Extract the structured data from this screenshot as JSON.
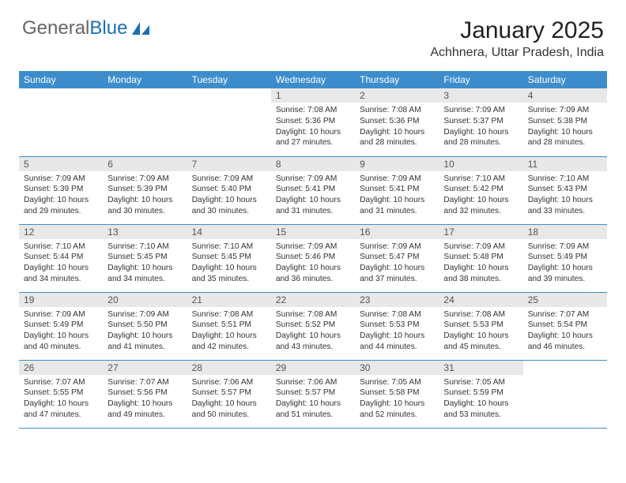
{
  "logo": {
    "part1": "General",
    "part2": "Blue"
  },
  "title": "January 2025",
  "location": "Achhnera, Uttar Pradesh, India",
  "colors": {
    "header_bg": "#3d8dcc",
    "daynum_bg": "#e8e8e8",
    "row_border": "#3d8dcc",
    "logo_gray": "#666666",
    "logo_blue": "#1a6fb3"
  },
  "weekdays": [
    "Sunday",
    "Monday",
    "Tuesday",
    "Wednesday",
    "Thursday",
    "Friday",
    "Saturday"
  ],
  "weeks": [
    [
      null,
      null,
      null,
      {
        "n": "1",
        "sr": "7:08 AM",
        "ss": "5:36 PM",
        "dl": "10 hours and 27 minutes."
      },
      {
        "n": "2",
        "sr": "7:08 AM",
        "ss": "5:36 PM",
        "dl": "10 hours and 28 minutes."
      },
      {
        "n": "3",
        "sr": "7:09 AM",
        "ss": "5:37 PM",
        "dl": "10 hours and 28 minutes."
      },
      {
        "n": "4",
        "sr": "7:09 AM",
        "ss": "5:38 PM",
        "dl": "10 hours and 28 minutes."
      }
    ],
    [
      {
        "n": "5",
        "sr": "7:09 AM",
        "ss": "5:39 PM",
        "dl": "10 hours and 29 minutes."
      },
      {
        "n": "6",
        "sr": "7:09 AM",
        "ss": "5:39 PM",
        "dl": "10 hours and 30 minutes."
      },
      {
        "n": "7",
        "sr": "7:09 AM",
        "ss": "5:40 PM",
        "dl": "10 hours and 30 minutes."
      },
      {
        "n": "8",
        "sr": "7:09 AM",
        "ss": "5:41 PM",
        "dl": "10 hours and 31 minutes."
      },
      {
        "n": "9",
        "sr": "7:09 AM",
        "ss": "5:41 PM",
        "dl": "10 hours and 31 minutes."
      },
      {
        "n": "10",
        "sr": "7:10 AM",
        "ss": "5:42 PM",
        "dl": "10 hours and 32 minutes."
      },
      {
        "n": "11",
        "sr": "7:10 AM",
        "ss": "5:43 PM",
        "dl": "10 hours and 33 minutes."
      }
    ],
    [
      {
        "n": "12",
        "sr": "7:10 AM",
        "ss": "5:44 PM",
        "dl": "10 hours and 34 minutes."
      },
      {
        "n": "13",
        "sr": "7:10 AM",
        "ss": "5:45 PM",
        "dl": "10 hours and 34 minutes."
      },
      {
        "n": "14",
        "sr": "7:10 AM",
        "ss": "5:45 PM",
        "dl": "10 hours and 35 minutes."
      },
      {
        "n": "15",
        "sr": "7:09 AM",
        "ss": "5:46 PM",
        "dl": "10 hours and 36 minutes."
      },
      {
        "n": "16",
        "sr": "7:09 AM",
        "ss": "5:47 PM",
        "dl": "10 hours and 37 minutes."
      },
      {
        "n": "17",
        "sr": "7:09 AM",
        "ss": "5:48 PM",
        "dl": "10 hours and 38 minutes."
      },
      {
        "n": "18",
        "sr": "7:09 AM",
        "ss": "5:49 PM",
        "dl": "10 hours and 39 minutes."
      }
    ],
    [
      {
        "n": "19",
        "sr": "7:09 AM",
        "ss": "5:49 PM",
        "dl": "10 hours and 40 minutes."
      },
      {
        "n": "20",
        "sr": "7:09 AM",
        "ss": "5:50 PM",
        "dl": "10 hours and 41 minutes."
      },
      {
        "n": "21",
        "sr": "7:08 AM",
        "ss": "5:51 PM",
        "dl": "10 hours and 42 minutes."
      },
      {
        "n": "22",
        "sr": "7:08 AM",
        "ss": "5:52 PM",
        "dl": "10 hours and 43 minutes."
      },
      {
        "n": "23",
        "sr": "7:08 AM",
        "ss": "5:53 PM",
        "dl": "10 hours and 44 minutes."
      },
      {
        "n": "24",
        "sr": "7:08 AM",
        "ss": "5:53 PM",
        "dl": "10 hours and 45 minutes."
      },
      {
        "n": "25",
        "sr": "7:07 AM",
        "ss": "5:54 PM",
        "dl": "10 hours and 46 minutes."
      }
    ],
    [
      {
        "n": "26",
        "sr": "7:07 AM",
        "ss": "5:55 PM",
        "dl": "10 hours and 47 minutes."
      },
      {
        "n": "27",
        "sr": "7:07 AM",
        "ss": "5:56 PM",
        "dl": "10 hours and 49 minutes."
      },
      {
        "n": "28",
        "sr": "7:06 AM",
        "ss": "5:57 PM",
        "dl": "10 hours and 50 minutes."
      },
      {
        "n": "29",
        "sr": "7:06 AM",
        "ss": "5:57 PM",
        "dl": "10 hours and 51 minutes."
      },
      {
        "n": "30",
        "sr": "7:05 AM",
        "ss": "5:58 PM",
        "dl": "10 hours and 52 minutes."
      },
      {
        "n": "31",
        "sr": "7:05 AM",
        "ss": "5:59 PM",
        "dl": "10 hours and 53 minutes."
      },
      null
    ]
  ],
  "labels": {
    "sunrise": "Sunrise:",
    "sunset": "Sunset:",
    "daylight": "Daylight:"
  }
}
